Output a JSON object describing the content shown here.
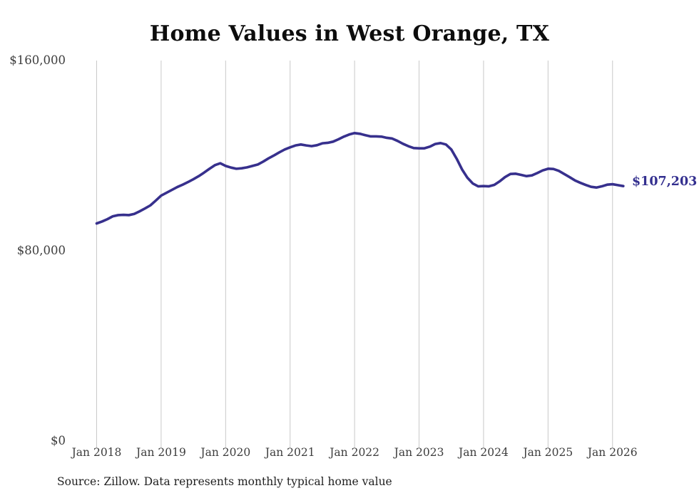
{
  "chart_data": {
    "type": "line",
    "title": "Home Values in West Orange, TX",
    "source_note": "Source: Zillow. Data represents monthly typical home value",
    "end_label": "$107,203",
    "series_name": "Monthly typical home value",
    "frequency": "monthly",
    "start_month": "Jan 2018",
    "x_tick_labels": [
      "Jan 2018",
      "Jan 2019",
      "Jan 2020",
      "Jan 2021",
      "Jan 2022",
      "Jan 2023",
      "Jan 2024",
      "Jan 2025",
      "Jan 2026"
    ],
    "y_tick_labels": [
      "$0",
      "$80,000",
      "$160,000"
    ],
    "ylim": [
      0,
      160000
    ],
    "grid": "vertical-only",
    "values": [
      91500,
      92300,
      93300,
      94500,
      95000,
      95100,
      95000,
      95500,
      96600,
      97800,
      99100,
      101100,
      103200,
      104400,
      105600,
      106800,
      107800,
      108900,
      110100,
      111400,
      112900,
      114500,
      116000,
      116800,
      115700,
      115000,
      114500,
      114700,
      115100,
      115700,
      116300,
      117500,
      118900,
      120100,
      121400,
      122600,
      123500,
      124300,
      124700,
      124300,
      124000,
      124400,
      125200,
      125400,
      125900,
      126900,
      128000,
      128900,
      129500,
      129200,
      128600,
      128100,
      128100,
      128000,
      127500,
      127200,
      126200,
      125000,
      124000,
      123200,
      123100,
      123100,
      123800,
      124900,
      125300,
      124700,
      122600,
      118700,
      114200,
      110700,
      108300,
      107100,
      107200,
      107100,
      107700,
      109200,
      111000,
      112300,
      112400,
      111900,
      111400,
      111700,
      112700,
      113800,
      114500,
      114400,
      113600,
      112300,
      111000,
      109600,
      108600,
      107700,
      106900,
      106600,
      107100,
      107800,
      108000,
      107600,
      107203
    ]
  },
  "colors": {
    "line": "#37308d",
    "grid": "#c9c9c9",
    "title_text": "#0d0d0d",
    "axis_text": "#3d3d3d",
    "end_label_text": "#332f8f",
    "background": "#ffffff"
  }
}
